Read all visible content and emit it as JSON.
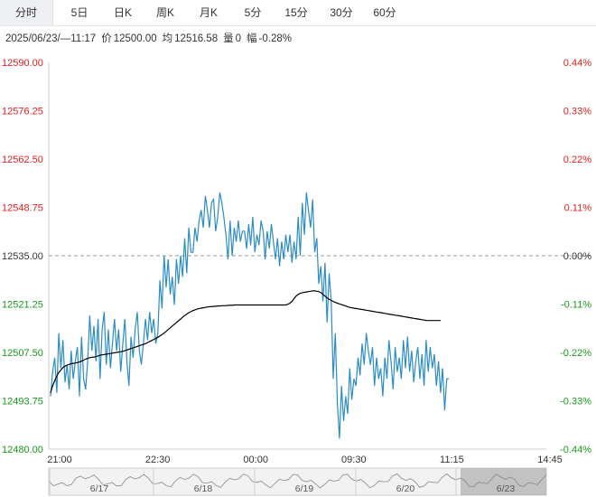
{
  "tabs": [
    "分时",
    "5日",
    "日K",
    "周K",
    "月K",
    "5分",
    "15分",
    "30分",
    "60分"
  ],
  "info": {
    "datetime": "2025/06/23/—11:17",
    "price_label": "价",
    "price": "12500.00",
    "avg_label": "均",
    "avg": "12516.58",
    "vol_label": "量",
    "vol": "0",
    "pct_label": "幅",
    "pct": "-0.28%"
  },
  "colors": {
    "up": "#e02020",
    "down": "#1a9a1a",
    "neutral": "#333333",
    "price_line": "#2b8cc4",
    "avg_line": "#000000"
  },
  "navigator": {
    "days": [
      "6/17",
      "6/18",
      "6/19",
      "6/20",
      "6/23"
    ]
  },
  "chart_data": {
    "type": "line",
    "prev_close": 12535.0,
    "ylim": [
      12480.0,
      12590.0
    ],
    "y_ticks": [
      "12590.00",
      "12576.25",
      "12562.50",
      "12548.75",
      "12535.00",
      "12521.25",
      "12507.50",
      "12493.75",
      "12480.00"
    ],
    "pct_ticks": [
      "0.44%",
      "0.33%",
      "0.22%",
      "0.11%",
      "0.00%",
      "-0.11%",
      "-0.22%",
      "-0.33%",
      "-0.44%"
    ],
    "x_ticks": [
      "21:00",
      "22:30",
      "00:00",
      "09:30",
      "11:15",
      "14:45"
    ],
    "series": [
      {
        "key": "price",
        "values": [
          12495,
          12502,
          12506,
          12496,
          12513,
          12503,
          12511,
          12499,
          12504,
          12497,
          12508,
          12500,
          12505,
          12509,
          12495,
          12512,
          12500,
          12497,
          12505,
          12518,
          12508,
          12515,
          12505,
          12517,
          12500,
          12514,
          12519,
          12504,
          12514,
          12503,
          12510,
          12517,
          12508,
          12514,
          12502,
          12510,
          12517,
          12505,
          12498,
          12512,
          12506,
          12514,
          12519,
          12508,
          12504,
          12510,
          12517,
          12511,
          12519,
          12513,
          12517,
          12510,
          12513,
          12528,
          12520,
          12535,
          12526,
          12534,
          12524,
          12529,
          12521,
          12534,
          12527,
          12535,
          12529,
          12540,
          12530,
          12543,
          12536,
          12536,
          12543,
          12539,
          12545,
          12548,
          12543,
          12552,
          12548,
          12543,
          12550,
          12551,
          12542,
          12546,
          12553,
          12550,
          12546,
          12541,
          12534,
          12545,
          12535,
          12543,
          12539,
          12545,
          12539,
          12542,
          12542,
          12537,
          12544,
          12538,
          12546,
          12536,
          12541,
          12538,
          12545,
          12542,
          12534,
          12542,
          12537,
          12544,
          12539,
          12534,
          12540,
          12532,
          12539,
          12534,
          12541,
          12536,
          12541,
          12533,
          12539,
          12534,
          12546,
          12535,
          12550,
          12541,
          12553,
          12548,
          12543,
          12551,
          12536,
          12540,
          12527,
          12532,
          12522,
          12533,
          12516,
          12530,
          12522,
          12500,
          12513,
          12493,
          12483,
          12498,
          12488,
          12495,
          12490,
          12503,
          12494,
          12500,
          12498,
          12506,
          12501,
          12510,
          12504,
          12513,
          12508,
          12504,
          12509,
          12498,
          12506,
          12500,
          12503,
          12495,
          12506,
          12500,
          12511,
          12505,
          12497,
          12509,
          12502,
          12506,
          12500,
          12511,
          12503,
          12512,
          12502,
          12508,
          12499,
          12505,
          12509,
          12500,
          12507,
          12498,
          12511,
          12502,
          12509,
          12503,
          12507,
          12498,
          12505,
          12496,
          12503,
          12491,
          12500,
          12500
        ]
      },
      {
        "key": "average",
        "values": [
          12496,
          12498,
          12499.5,
          12500.8,
          12501.8,
          12502.5,
          12503.2,
          12503.6,
          12503.9,
          12504.1,
          12504.3,
          12504.4,
          12504.5,
          12504.6,
          12504.8,
          12505,
          12505.3,
          12505.6,
          12505.8,
          12506,
          12506.1,
          12506.2,
          12506.3,
          12506.5,
          12506.7,
          12506.8,
          12506.9,
          12507,
          12507.1,
          12507.2,
          12507.3,
          12507.4,
          12507.5,
          12507.6,
          12507.7,
          12507.8,
          12508,
          12508.2,
          12508.4,
          12508.6,
          12508.8,
          12509,
          12509.2,
          12509.4,
          12509.6,
          12509.8,
          12510,
          12510.3,
          12510.6,
          12510.9,
          12511.2,
          12511.5,
          12511.8,
          12512.2,
          12512.6,
          12513,
          12513.5,
          12514,
          12514.5,
          12515,
          12515.5,
          12516,
          12516.5,
          12517,
          12517.5,
          12518,
          12518.4,
          12518.8,
          12519.1,
          12519.4,
          12519.6,
          12519.8,
          12520,
          12520.1,
          12520.2,
          12520.3,
          12520.4,
          12520.5,
          12520.5,
          12520.6,
          12520.6,
          12520.7,
          12520.7,
          12520.8,
          12520.8,
          12520.8,
          12520.9,
          12520.9,
          12520.9,
          12521,
          12521,
          12521,
          12521,
          12521,
          12521,
          12521,
          12521,
          12521,
          12521,
          12521,
          12521,
          12521,
          12521,
          12521,
          12521,
          12521,
          12521,
          12521,
          12521,
          12521,
          12521,
          12521,
          12521,
          12521,
          12521,
          12521.2,
          12521.5,
          12522,
          12522.8,
          12523.5,
          12524,
          12524.3,
          12524.5,
          12524.6,
          12524.7,
          12524.8,
          12524.9,
          12525,
          12525,
          12524.9,
          12524.8,
          12524.5,
          12524,
          12523.5,
          12523,
          12522.6,
          12522.3,
          12522,
          12521.7,
          12521.5,
          12521.3,
          12521.1,
          12520.9,
          12520.7,
          12520.5,
          12520.3,
          12520.2,
          12520.1,
          12520,
          12519.9,
          12519.8,
          12519.7,
          12519.6,
          12519.5,
          12519.4,
          12519.3,
          12519.2,
          12519.1,
          12519,
          12518.9,
          12518.8,
          12518.7,
          12518.6,
          12518.5,
          12518.4,
          12518.3,
          12518.2,
          12518.1,
          12518,
          12517.9,
          12517.8,
          12517.7,
          12517.6,
          12517.5,
          12517.4,
          12517.3,
          12517.2,
          12517.1,
          12517,
          12516.9,
          12516.8,
          12516.7,
          12516.6,
          12516.58,
          12516.58,
          12516.58,
          12516.58,
          12516.58,
          12516.58,
          12516.58
        ]
      }
    ]
  }
}
